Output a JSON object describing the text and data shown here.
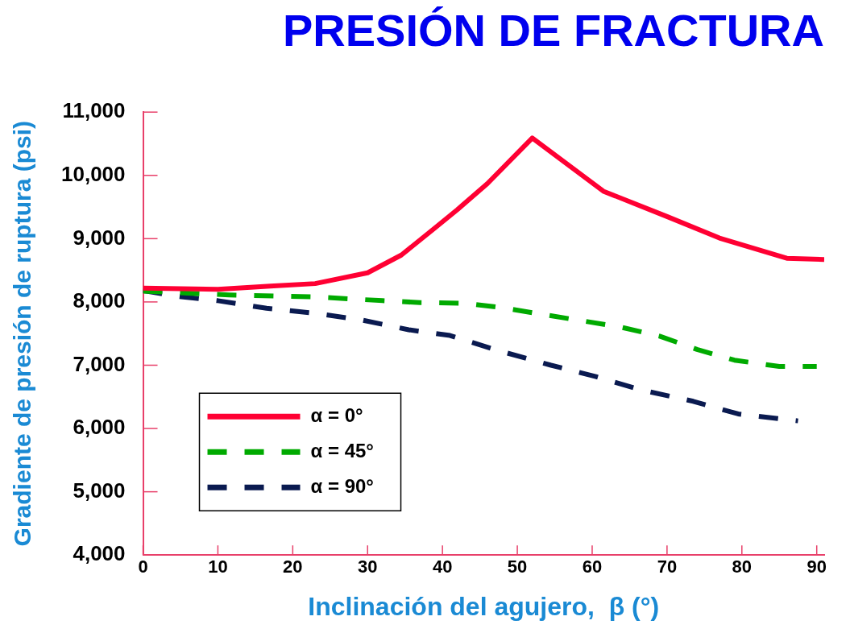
{
  "chart_data": {
    "type": "line",
    "title": "PRESIÓN DE FRACTURA",
    "xlabel": "Inclinación del agujero,  β (°)",
    "ylabel": "Gradiente de presión de ruptura (psi)",
    "xlim": [
      0,
      91
    ],
    "xticks": [
      0,
      10,
      20,
      30,
      40,
      50,
      60,
      70,
      80,
      90
    ],
    "ylim": [
      4000,
      11000
    ],
    "yticks": [
      {
        "value": 4000,
        "label": "4,000"
      },
      {
        "value": 5000,
        "label": "5,000"
      },
      {
        "value": 6000,
        "label": "6,000"
      },
      {
        "value": 7000,
        "label": "7,000"
      },
      {
        "value": 8000,
        "label": "8,000"
      },
      {
        "value": 9000,
        "label": "9,000"
      },
      {
        "value": 10000,
        "label": "10,000"
      },
      {
        "value": 11000,
        "label": "11,000"
      }
    ],
    "grid": false,
    "legend": "bottom left",
    "marker": "none",
    "series": [
      {
        "name": "α = 0°",
        "color": "#ff0033",
        "line_style": "solid",
        "x": [
          0,
          10,
          17,
          23,
          30,
          34.5,
          39,
          42,
          46,
          52,
          61.5,
          70,
          77,
          86,
          91
        ],
        "values": [
          8220,
          8200,
          8250,
          8290,
          8460,
          8740,
          9170,
          9460,
          9870,
          10590,
          9750,
          9350,
          9010,
          8690,
          8670
        ]
      },
      {
        "name": "α = 45°",
        "color": "#00aa00",
        "line_style": "dashed",
        "x": [
          0,
          11.5,
          23,
          32,
          37,
          43,
          48,
          53,
          63.5,
          69,
          74,
          79,
          85,
          90
        ],
        "values": [
          8170,
          8110,
          8080,
          8020,
          7990,
          7980,
          7910,
          7810,
          7610,
          7460,
          7250,
          7080,
          6980,
          6980
        ]
      },
      {
        "name": "α = 90°",
        "color": "#0a1a50",
        "line_style": "dashed",
        "x": [
          0,
          4.5,
          10,
          16.5,
          23,
          29,
          35.5,
          41,
          47.5,
          54.5,
          60.5,
          66.5,
          73.5,
          79.5,
          86,
          87.5
        ],
        "values": [
          8180,
          8090,
          8020,
          7900,
          7820,
          7720,
          7560,
          7470,
          7230,
          7000,
          6820,
          6610,
          6430,
          6230,
          6140,
          6120
        ]
      }
    ]
  }
}
